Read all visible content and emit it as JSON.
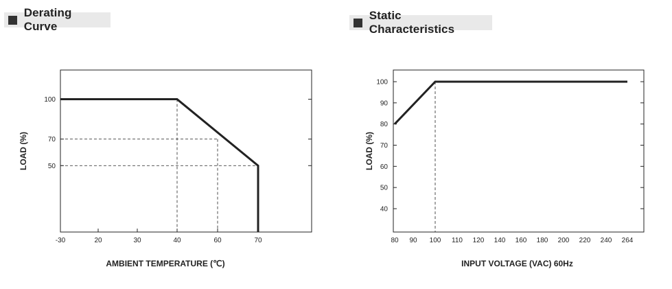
{
  "headers": {
    "derating": "Derating Curve",
    "static": "Static Characteristics"
  },
  "colors": {
    "line": "#222222",
    "header_bg": "#e9e9e9",
    "header_square": "#333333"
  },
  "chart_data": [
    {
      "type": "line",
      "title": "Derating Curve",
      "xlabel": "AMBIENT TEMPERATURE (℃)",
      "ylabel": "LOAD (%)",
      "x_ticks": [
        "-30",
        "20",
        "30",
        "40",
        "60",
        "70"
      ],
      "y_ticks": [
        "100",
        "70",
        "50"
      ],
      "series": [
        {
          "x": [
            -30,
            40,
            70,
            70
          ],
          "y": [
            100,
            100,
            50,
            0
          ]
        }
      ],
      "reference_lines": [
        {
          "from": [
            -30,
            70
          ],
          "to": [
            60,
            70
          ]
        },
        {
          "from": [
            -30,
            50
          ],
          "to": [
            70,
            50
          ]
        },
        {
          "from": [
            40,
            100
          ],
          "to": [
            40,
            0
          ]
        },
        {
          "from": [
            60,
            70
          ],
          "to": [
            60,
            0
          ]
        }
      ],
      "grid": false
    },
    {
      "type": "line",
      "title": "Static Characteristics",
      "xlabel": "INPUT VOLTAGE (VAC) 60Hz",
      "ylabel": "LOAD (%)",
      "x_ticks": [
        "80",
        "90",
        "100",
        "110",
        "120",
        "140",
        "160",
        "180",
        "200",
        "220",
        "240",
        "264"
      ],
      "y_ticks": [
        "100",
        "90",
        "80",
        "70",
        "60",
        "50",
        "40"
      ],
      "series": [
        {
          "x": [
            80,
            100,
            264
          ],
          "y": [
            80,
            100,
            100
          ]
        }
      ],
      "reference_lines": [
        {
          "from": [
            100,
            100
          ],
          "to": [
            100,
            30
          ]
        }
      ],
      "grid": false
    }
  ]
}
